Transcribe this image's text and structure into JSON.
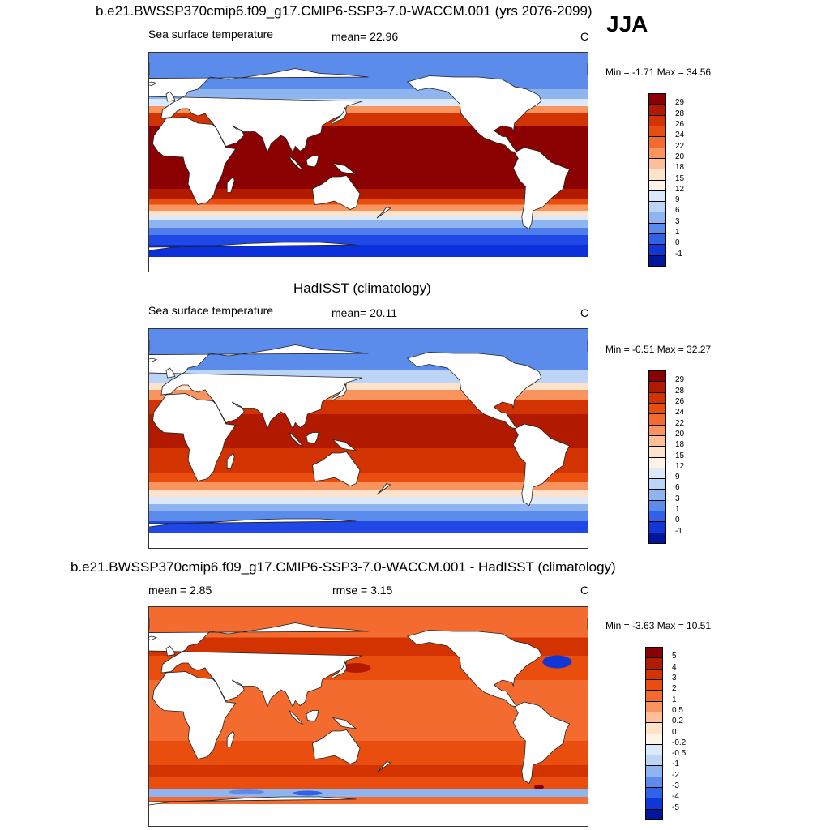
{
  "season": "JJA",
  "panels": [
    {
      "title": "b.e21.BWSSP370cmip6.f09_g17.CMIP6-SSP3-7.0-WACCM.001 (yrs 2076-2099)",
      "left_label": "Sea surface temperature",
      "center_label": "mean=  22.96",
      "units": "C",
      "minmax": "Min =  -1.71 Max =  34.56",
      "colorbar": {
        "labels": [
          "29",
          "28",
          "26",
          "24",
          "22",
          "20",
          "18",
          "15",
          "12",
          "9",
          "6",
          "3",
          "1",
          "0",
          "-1"
        ],
        "colors": [
          "#8b0000",
          "#b21a00",
          "#d33300",
          "#e94e0f",
          "#f36b2f",
          "#f9945f",
          "#fcbf98",
          "#fde2cc",
          "#fff2e6",
          "#dbe9fb",
          "#bcd5f7",
          "#8fb5f0",
          "#5b8ceb",
          "#2f62e6",
          "#1037d6",
          "#00179c"
        ]
      },
      "map": {
        "bands": [
          {
            "from": -90,
            "to": -78,
            "color": "#ffffff"
          },
          {
            "from": -78,
            "to": -68,
            "color": "#0b2fd9"
          },
          {
            "from": -68,
            "to": -60,
            "color": "#1f48e6"
          },
          {
            "from": -60,
            "to": -54,
            "color": "#4f7eea"
          },
          {
            "from": -54,
            "to": -48,
            "color": "#8fb5f0"
          },
          {
            "from": -48,
            "to": -44,
            "color": "#dbe9fb"
          },
          {
            "from": -44,
            "to": -40,
            "color": "#fde2cc"
          },
          {
            "from": -40,
            "to": -35,
            "color": "#f9945f"
          },
          {
            "from": -35,
            "to": -30,
            "color": "#e94e0f"
          },
          {
            "from": -30,
            "to": -22,
            "color": "#b21a00"
          },
          {
            "from": -22,
            "to": 30,
            "color": "#8b0000"
          },
          {
            "from": 30,
            "to": 40,
            "color": "#d33300"
          },
          {
            "from": 40,
            "to": 46,
            "color": "#f9945f"
          },
          {
            "from": 46,
            "to": 52,
            "color": "#dbe9fb"
          },
          {
            "from": 52,
            "to": 60,
            "color": "#8fb5f0"
          },
          {
            "from": 60,
            "to": 90,
            "color": "#5b8ceb"
          }
        ]
      }
    },
    {
      "title": "HadISST (climatology)",
      "left_label": "Sea surface temperature",
      "center_label": "mean=  20.11",
      "units": "C",
      "minmax": "Min =  -0.51 Max =  32.27",
      "colorbar": {
        "labels": [
          "29",
          "28",
          "26",
          "24",
          "22",
          "20",
          "18",
          "15",
          "12",
          "9",
          "6",
          "3",
          "1",
          "0",
          "-1"
        ],
        "colors": [
          "#8b0000",
          "#b21a00",
          "#d33300",
          "#e94e0f",
          "#f36b2f",
          "#f9945f",
          "#fcbf98",
          "#fde2cc",
          "#fff2e6",
          "#dbe9fb",
          "#bcd5f7",
          "#8fb5f0",
          "#5b8ceb",
          "#2f62e6",
          "#1037d6",
          "#00179c"
        ]
      },
      "map": {
        "bands": [
          {
            "from": -90,
            "to": -78,
            "color": "#ffffff"
          },
          {
            "from": -78,
            "to": -68,
            "color": "#1f48e6"
          },
          {
            "from": -68,
            "to": -60,
            "color": "#5b8ceb"
          },
          {
            "from": -60,
            "to": -54,
            "color": "#8fb5f0"
          },
          {
            "from": -54,
            "to": -48,
            "color": "#dbe9fb"
          },
          {
            "from": -48,
            "to": -42,
            "color": "#fde2cc"
          },
          {
            "from": -42,
            "to": -36,
            "color": "#f9945f"
          },
          {
            "from": -36,
            "to": -28,
            "color": "#e94e0f"
          },
          {
            "from": -28,
            "to": -8,
            "color": "#d33300"
          },
          {
            "from": -8,
            "to": 20,
            "color": "#b21a00"
          },
          {
            "from": 20,
            "to": 32,
            "color": "#d33300"
          },
          {
            "from": 32,
            "to": 40,
            "color": "#f9945f"
          },
          {
            "from": 40,
            "to": 46,
            "color": "#fde2cc"
          },
          {
            "from": 46,
            "to": 56,
            "color": "#bcd5f7"
          },
          {
            "from": 56,
            "to": 90,
            "color": "#5b8ceb"
          }
        ]
      }
    },
    {
      "title": "b.e21.BWSSP370cmip6.f09_g17.CMIP6-SSP3-7.0-WACCM.001 - HadISST (climatology)",
      "left_label": "mean =   2.85",
      "center_label": "rmse =   3.15",
      "units": "C",
      "minmax": "Min =  -3.63 Max =  10.51",
      "colorbar": {
        "labels": [
          "5",
          "4",
          "3",
          "2",
          "1",
          "0.5",
          "0.2",
          "0",
          "-0.2",
          "-0.5",
          "-1",
          "-2",
          "-3",
          "-4",
          "-5"
        ],
        "colors": [
          "#8b0000",
          "#b21a00",
          "#d33300",
          "#e94e0f",
          "#f36b2f",
          "#f9945f",
          "#fcbf98",
          "#fde2cc",
          "#fff2e6",
          "#dbe9fb",
          "#bcd5f7",
          "#8fb5f0",
          "#5b8ceb",
          "#2f62e6",
          "#1037d6",
          "#00179c"
        ]
      },
      "map": {
        "bands": [
          {
            "from": -90,
            "to": -72,
            "color": "#ffffff"
          },
          {
            "from": -72,
            "to": -66,
            "color": "#f36b2f"
          },
          {
            "from": -66,
            "to": -60,
            "color": "#8fb5f0"
          },
          {
            "from": -60,
            "to": -50,
            "color": "#e94e0f"
          },
          {
            "from": -50,
            "to": -40,
            "color": "#d33300"
          },
          {
            "from": -40,
            "to": -20,
            "color": "#e94e0f"
          },
          {
            "from": -20,
            "to": 30,
            "color": "#f36b2f"
          },
          {
            "from": 30,
            "to": 50,
            "color": "#e94e0f"
          },
          {
            "from": 50,
            "to": 65,
            "color": "#d33300"
          },
          {
            "from": 65,
            "to": 90,
            "color": "#f36b2f"
          }
        ]
      }
    }
  ],
  "continent_color": "#ffffff",
  "outline_color": "#222222"
}
